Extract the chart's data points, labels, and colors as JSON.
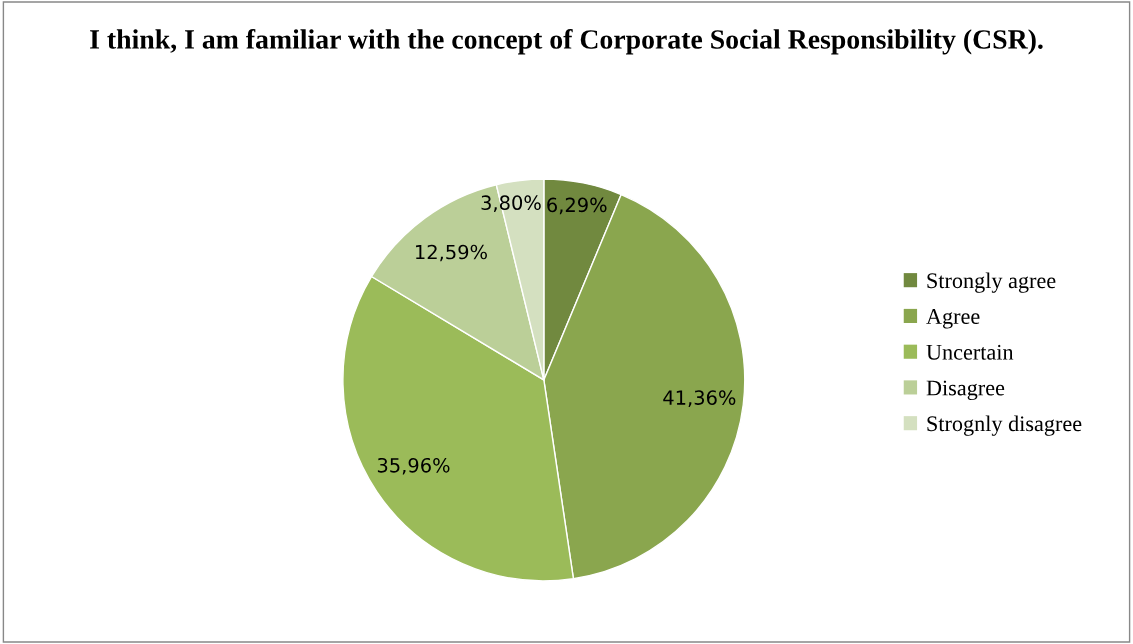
{
  "chart_data": {
    "type": "pie",
    "title": "I think, I am familiar with the concept of Corporate Social Responsibility (CSR).",
    "categories": [
      "Strongly agree",
      "Agree",
      "Uncertain",
      "Disagree",
      "Strognly disagree"
    ],
    "values": [
      6.29,
      41.36,
      35.96,
      12.59,
      3.8
    ],
    "value_labels": [
      "6,29%",
      "41,36%",
      "35,96%",
      "12,59%",
      "3,80%"
    ],
    "colors": [
      "#71893f",
      "#8aa64e",
      "#9bbb59",
      "#bbcf98",
      "#d4e0c0"
    ],
    "legend": "right"
  }
}
